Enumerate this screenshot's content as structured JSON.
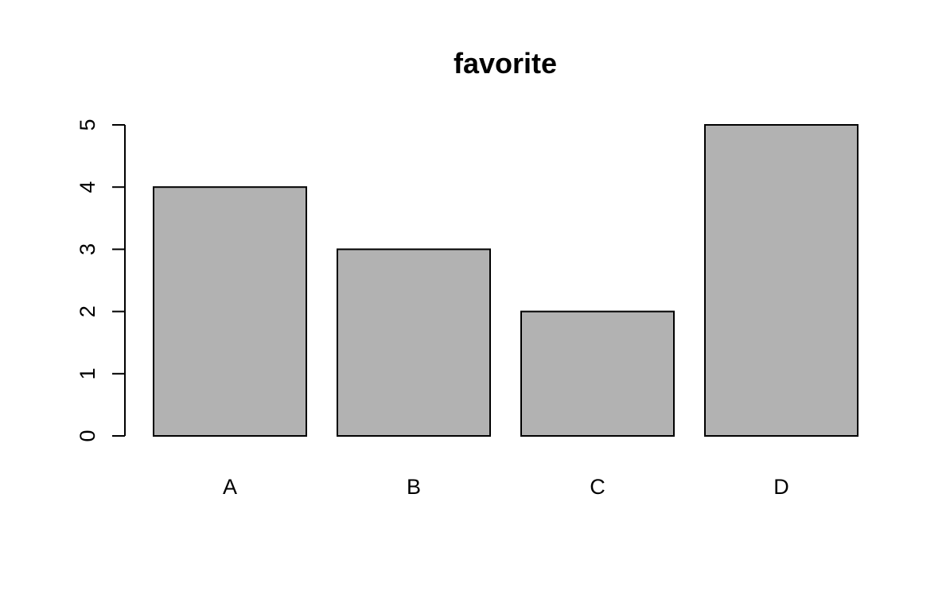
{
  "chart_data": {
    "type": "bar",
    "title": "favorite",
    "categories": [
      "A",
      "B",
      "C",
      "D"
    ],
    "values": [
      4,
      3,
      2,
      5
    ],
    "xlabel": "",
    "ylabel": "",
    "ylim": [
      0,
      5
    ],
    "yticks": [
      0,
      1,
      2,
      3,
      4,
      5
    ],
    "grid": false,
    "legend": "none",
    "bar_color": "#b2b2b2",
    "border_color": "#000000"
  }
}
